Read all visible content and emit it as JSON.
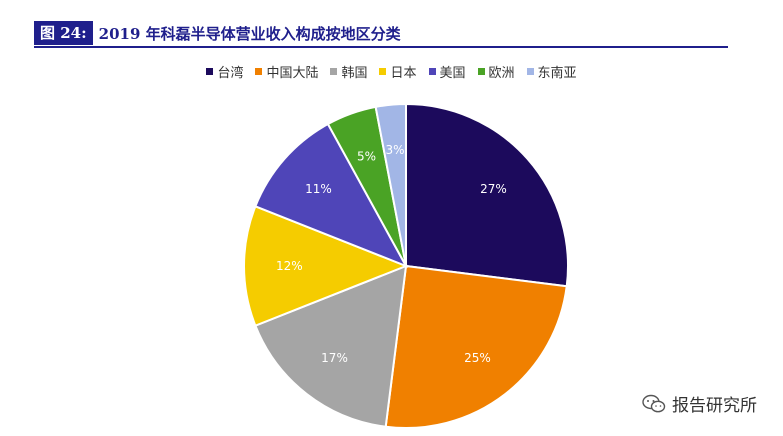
{
  "header": {
    "figure_tag": "图 24:",
    "title": "2019 年科磊半导体营业收入构成按地区分类"
  },
  "watermark": {
    "text": "报告研究所",
    "icon": "wechat-icon"
  },
  "chart_data": {
    "type": "pie",
    "title": "2019 年科磊半导体营业收入构成按地区分类",
    "legend_position": "top",
    "categories": [
      "台湾",
      "中国大陆",
      "韩国",
      "日本",
      "美国",
      "欧洲",
      "东南亚"
    ],
    "values": [
      27,
      25,
      17,
      12,
      11,
      5,
      3
    ],
    "labels": [
      "27%",
      "25%",
      "17%",
      "12%",
      "11%",
      "5%",
      "3%"
    ],
    "colors": [
      "#1c0a5c",
      "#f08000",
      "#a5a5a5",
      "#f5cc00",
      "#4f45b8",
      "#4aa325",
      "#a2b6e6"
    ],
    "label_colors": [
      "#ffffff",
      "#ffffff",
      "#ffffff",
      "#ffffff",
      "#ffffff",
      "#ffffff",
      "#ffffff"
    ]
  }
}
